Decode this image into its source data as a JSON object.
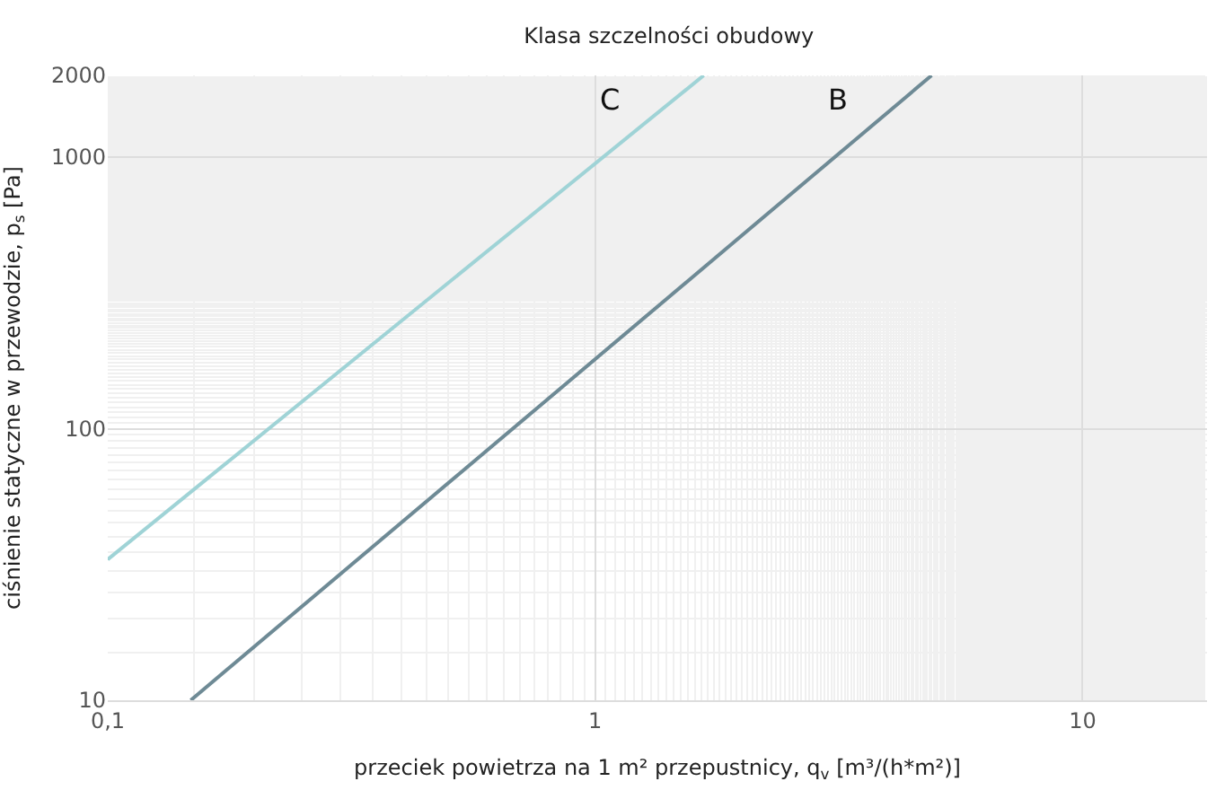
{
  "chart_data": {
    "type": "line",
    "title": "Klasa szczelności obudowy",
    "xlabel": "przeciek powietrza na 1 m² przepustnicy, q$_{v}$ [m³/(h*m²)]",
    "ylabel": "ciśnienie statyczne w przewodzie, p$_{s}$ [Pa]",
    "log": "xy",
    "grid": true,
    "legend": false,
    "marker": "none",
    "line_style": "solid",
    "xlim": [
      0.1,
      18
    ],
    "xticks": [
      {
        "value": 0.1,
        "label": "0,1"
      },
      1,
      10
    ],
    "ylim": [
      10,
      2000
    ],
    "yticks": [
      10,
      100,
      1000,
      2000
    ],
    "series": [
      {
        "name": "C",
        "color": "#9fd3d6",
        "x": [
          0.1,
          1.67
        ],
        "values": [
          33,
          2000
        ]
      },
      {
        "name": "B",
        "color": "#6e8a95",
        "x": [
          0.148,
          4.9
        ],
        "values": [
          10,
          2000
        ]
      }
    ]
  }
}
